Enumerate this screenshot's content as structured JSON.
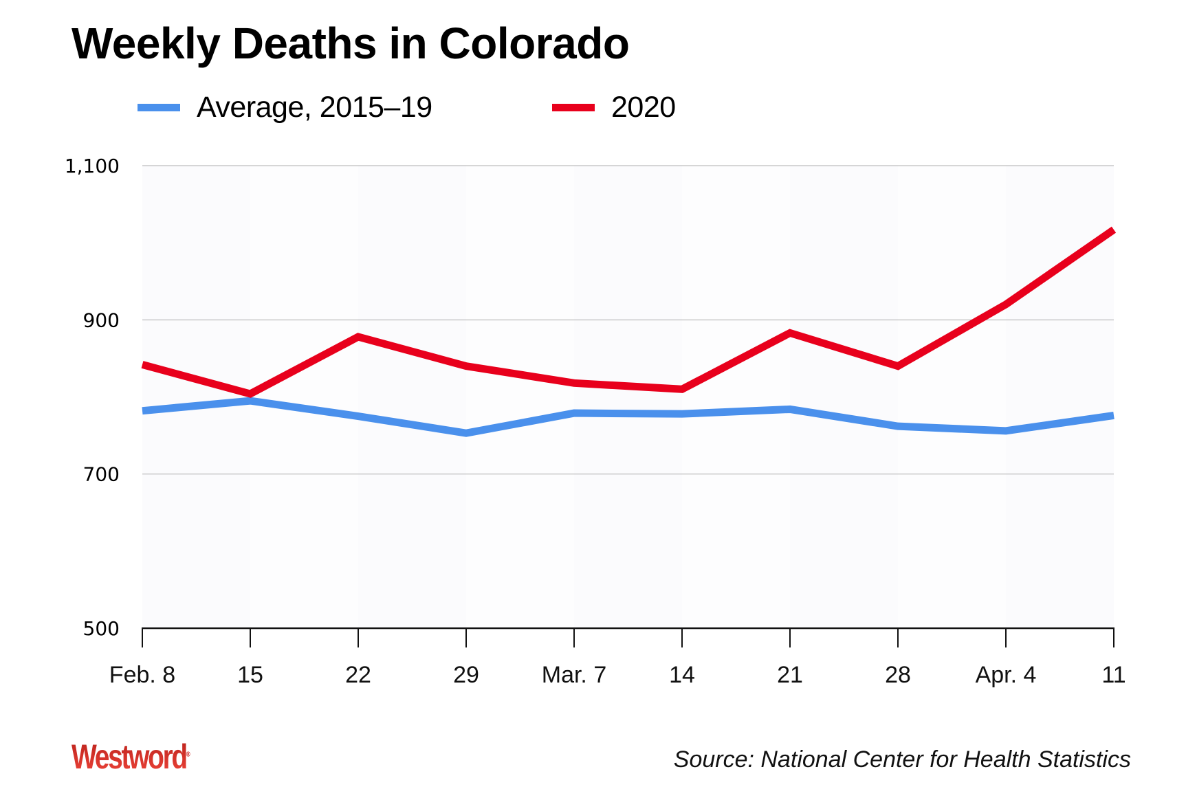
{
  "title": "Weekly Deaths in Colorado",
  "legend": [
    {
      "label": "Average, 2015–19",
      "color": "#4a90ec"
    },
    {
      "label": "2020",
      "color": "#e8001c"
    }
  ],
  "source": "Source: National Center for Health Statistics",
  "logo": {
    "text": "Westword",
    "mark": "®"
  },
  "chart_data": {
    "type": "line",
    "title": "Weekly Deaths in Colorado",
    "xlabel": "",
    "ylabel": "",
    "categories": [
      "Feb. 8",
      "15",
      "22",
      "29",
      "Mar. 7",
      "14",
      "21",
      "28",
      "Apr. 4",
      "11"
    ],
    "series": [
      {
        "name": "Average, 2015–19",
        "color": "#4a90ec",
        "values": [
          782,
          795,
          775,
          753,
          779,
          778,
          784,
          762,
          756,
          776
        ]
      },
      {
        "name": "2020",
        "color": "#e8001c",
        "values": [
          842,
          804,
          878,
          840,
          818,
          810,
          883,
          840,
          920,
          1017
        ]
      }
    ],
    "ylim": [
      500,
      1100
    ],
    "yticks": [
      500,
      700,
      900,
      1100
    ],
    "ytick_labels": [
      "500",
      "700",
      "900",
      "1,100"
    ],
    "grid": true,
    "legend_position": "top-left",
    "source": "Source: National Center for Health Statistics"
  }
}
